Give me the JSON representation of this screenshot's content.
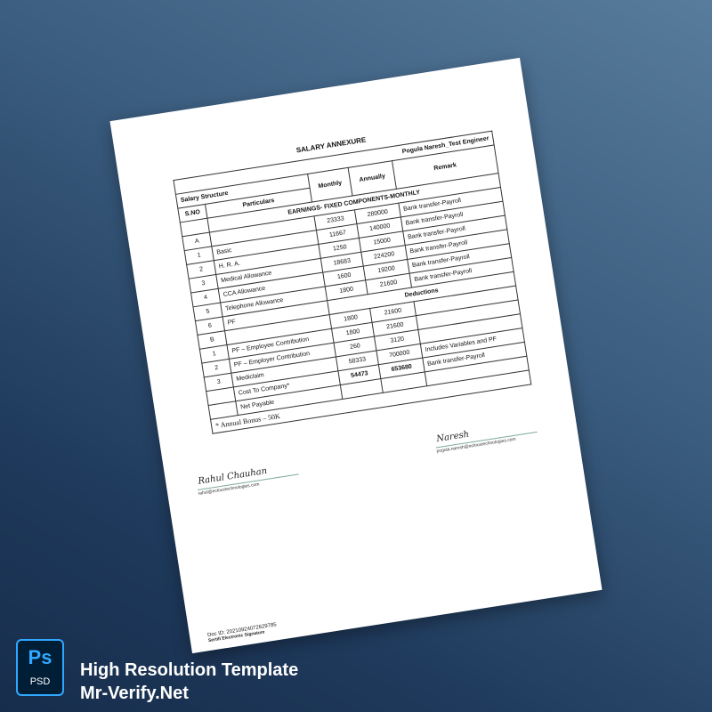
{
  "document": {
    "title": "SALARY ANNEXURE",
    "employee": "Pogula Naresh_Test Engineer",
    "structure_label": "Salary Structure",
    "headers": {
      "sno": "S.NO",
      "particulars": "Particulars",
      "monthly": "Monthly",
      "annually": "Annually",
      "remark": "Remark"
    },
    "earnings_heading": "EARNINGS- FIXED COMPONENTS-MONTHLY",
    "earnings": [
      {
        "sno": "A",
        "particular": "",
        "monthly": "23333",
        "annually": "280000",
        "remark": "Bank transfer-Payroll"
      },
      {
        "sno": "1",
        "particular": "Basic",
        "monthly": "11667",
        "annually": "140000",
        "remark": "Bank transfer-Payroll"
      },
      {
        "sno": "2",
        "particular": "H. R. A.",
        "monthly": "1250",
        "annually": "15000",
        "remark": "Bank transfer-Payroll"
      },
      {
        "sno": "3",
        "particular": "Medical Allowance",
        "monthly": "18683",
        "annually": "224200",
        "remark": "Bank transfer-Payroll"
      },
      {
        "sno": "4",
        "particular": "CCA Allowance",
        "monthly": "1600",
        "annually": "19200",
        "remark": "Bank transfer-Payroll"
      },
      {
        "sno": "5",
        "particular": "Telephone Allowance",
        "monthly": "1800",
        "annually": "21600",
        "remark": "Bank transfer-Payroll"
      }
    ],
    "pf_row": {
      "sno": "6",
      "particular": "PF",
      "heading": "Deductions"
    },
    "deductions": [
      {
        "sno": "B",
        "particular": "",
        "monthly": "1800",
        "annually": "21600",
        "remark": ""
      },
      {
        "sno": "1",
        "particular": "PF – Employee Contribution",
        "monthly": "1800",
        "annually": "21600",
        "remark": ""
      },
      {
        "sno": "2",
        "particular": "PF – Employer Contribution",
        "monthly": "260",
        "annually": "3120",
        "remark": ""
      },
      {
        "sno": "3",
        "particular": "Mediclaim",
        "monthly": "58333",
        "annually": "700000",
        "remark": "Includes Variables and PF"
      },
      {
        "sno": "",
        "particular": "Cost To Company*",
        "monthly": "54473",
        "annually": "653680",
        "remark": "Bank transfer-Payroll"
      },
      {
        "sno": "",
        "particular": "Net Payable",
        "monthly": "",
        "annually": "",
        "remark": ""
      }
    ],
    "bonus_note": "* Annual Bonus – 50K",
    "signatures": [
      {
        "name": "Naresh",
        "email": "pogula.naresh@eclouxtechnologies.com"
      },
      {
        "name": "Rahul Chauhan",
        "email": "rahul@eclouxtechnologies.com"
      }
    ],
    "doc_id": "Doc ID: 20210924072629785",
    "esign": "Sertifi Electronic Signature"
  },
  "brand": {
    "icon": "photoshop-psd-icon",
    "icon_letters": "Ps",
    "icon_label": "PSD",
    "line1": "High Resolution Template",
    "line2": "Mr-Verify.Net",
    "accent": "#31a8ff"
  }
}
